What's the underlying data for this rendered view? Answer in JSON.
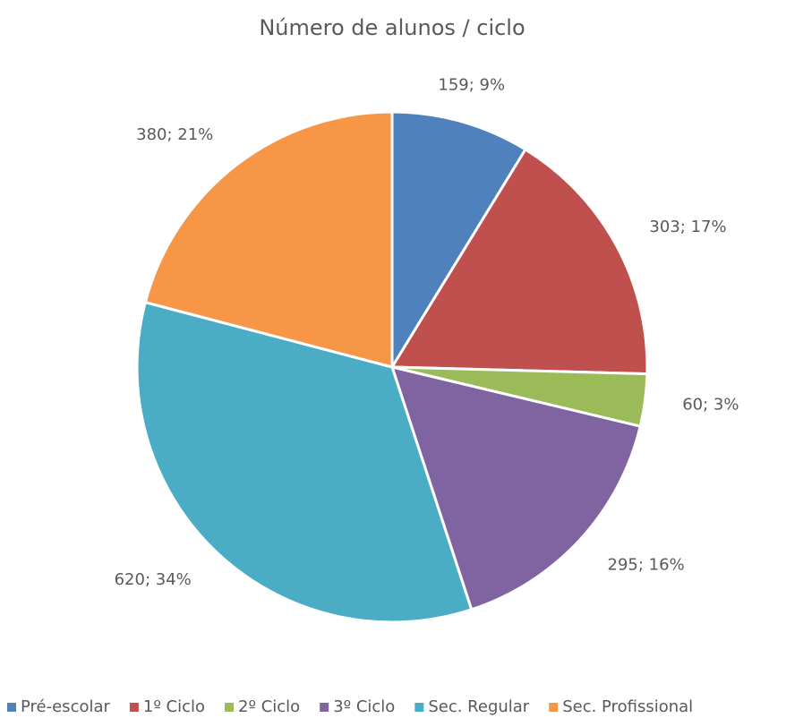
{
  "chart_data": {
    "type": "pie",
    "title": "Número de alunos / ciclo",
    "categories": [
      "Pré-escolar",
      "1º Ciclo",
      "2º Ciclo",
      "3º Ciclo",
      "Sec. Regular",
      "Sec. Profissional"
    ],
    "values": [
      159,
      303,
      60,
      295,
      620,
      380
    ],
    "value_labels": [
      "159; 9%",
      "303; 17%",
      "60; 3%",
      "295; 16%",
      "620; 34%",
      "380; 21%"
    ],
    "colors": [
      "#4f81bd",
      "#c0504d",
      "#9bbb59",
      "#8064a2",
      "#4bacc6",
      "#f79646"
    ],
    "legend": "bottom"
  }
}
